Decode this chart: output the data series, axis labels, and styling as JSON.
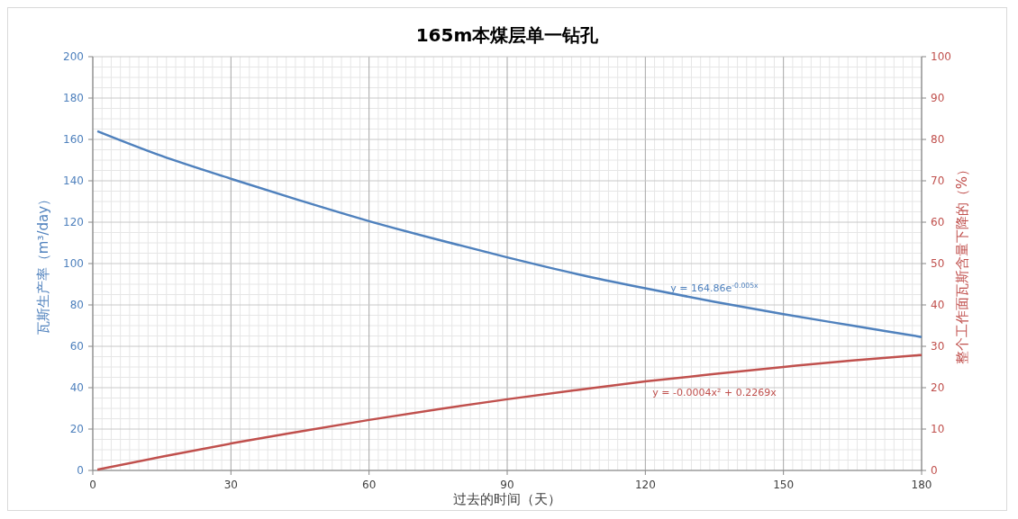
{
  "chart_data": {
    "type": "line",
    "title": "165m本煤层单一钻孔",
    "xlabel": "过去的时间（天）",
    "ylabel": "瓦斯生产率（m³/day）",
    "y2label": "整个工作面瓦斯含量下降的（%）",
    "xlim": [
      0,
      180
    ],
    "xticks": [
      0,
      30,
      60,
      90,
      120,
      150,
      180
    ],
    "ylim": [
      0,
      200
    ],
    "yticks": [
      0,
      20,
      40,
      60,
      80,
      100,
      120,
      140,
      160,
      180,
      200
    ],
    "y2lim": [
      0,
      100
    ],
    "y2ticks": [
      0,
      10,
      20,
      30,
      40,
      50,
      60,
      70,
      80,
      90,
      100
    ],
    "grid": true,
    "series": [
      {
        "color": "#4f81bd",
        "x": [
          1,
          15,
          30,
          45,
          60,
          75,
          90,
          105,
          120,
          135,
          150,
          165,
          180
        ],
        "values": [
          164,
          152,
          141,
          130.5,
          120.5,
          111.5,
          103,
          95,
          88,
          81.5,
          75.5,
          70,
          64.5
        ]
      },
      {
        "color": "#c0504d",
        "axis": "y2",
        "x": [
          1,
          15,
          30,
          45,
          60,
          75,
          90,
          105,
          120,
          135,
          150,
          165,
          180
        ],
        "values": [
          0.2,
          3.3,
          6.5,
          9.4,
          12.2,
          14.8,
          17.2,
          19.4,
          21.5,
          23.3,
          25,
          26.6,
          27.9
        ]
      }
    ],
    "annotations": [
      "y = 164.86e$^{-0.005x}$",
      "y = -0.0004x² + 0.2269x"
    ]
  }
}
